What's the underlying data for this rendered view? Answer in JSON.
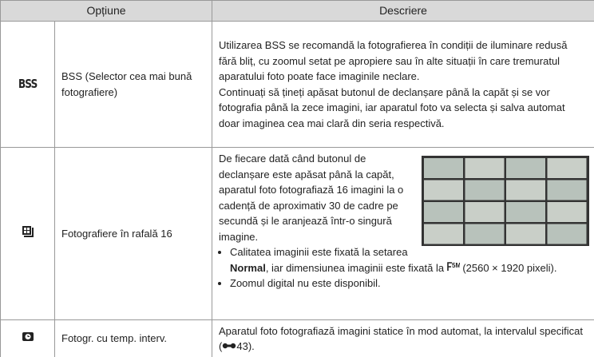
{
  "header": {
    "option": "Opțiune",
    "description": "Descriere"
  },
  "rows": [
    {
      "icon": "BSS",
      "option": "BSS (Selector cea mai bună fotografiere)",
      "description": [
        "Utilizarea BSS se recomandă la fotografierea în condiții de iluminare redusă fără bliț, cu zoomul setat pe apropiere sau în alte situații în care tremuratul aparatului foto poate face imaginile neclare.",
        "Continuați să țineți apăsat butonul de declanșare până la capăt și se vor fotografia până la zece imagini, iar aparatul foto va selecta și salva automat doar imaginea cea mai clară din seria respectivă."
      ]
    },
    {
      "option": "Fotografiere în rafală 16",
      "description": "De fiecare dată când butonul de declanșare este apăsat până la capăt, aparatul foto fotografiază 16 imagini la o cadență de aproximativ 30 de cadre pe secundă și le aranjează într-o singură imagine.",
      "bullets": [
        {
          "before": "Calitatea imaginii este fixată la setarea ",
          "bold": "Normal",
          "middle": ", iar dimensiunea imaginii este fixată la ",
          "after": " (2560 × 1920 pixeli)."
        },
        {
          "text": "Zoomul digital nu este disponibil."
        }
      ]
    },
    {
      "option": "Fotogr. cu temp. interv.",
      "description": {
        "before": "Aparatul foto fotografiază imagini statice în mod automat, la intervalul specificat (",
        "after": "43)."
      }
    }
  ]
}
